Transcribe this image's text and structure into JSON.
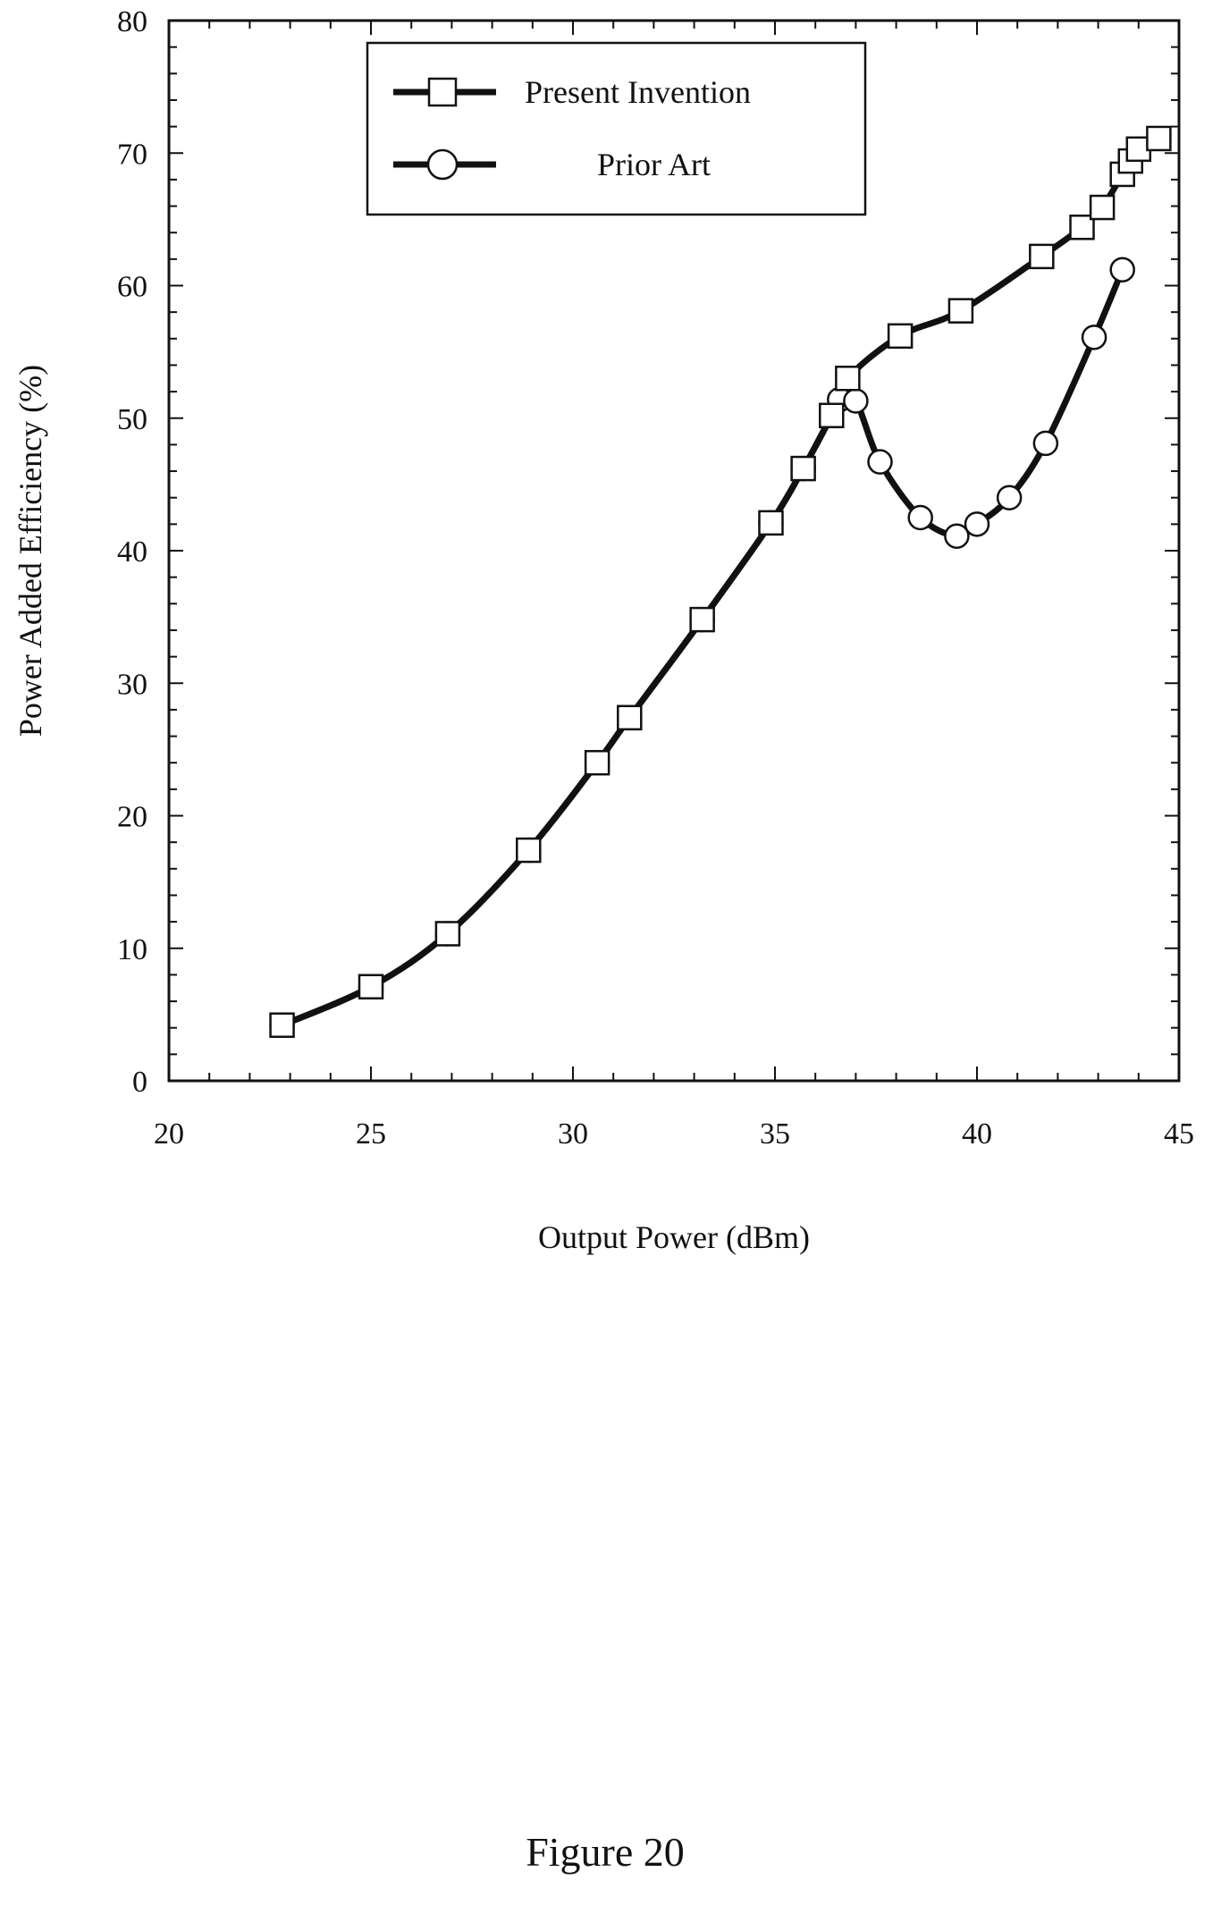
{
  "figure": {
    "caption": "Figure 20"
  },
  "chart_data": {
    "type": "line",
    "xlabel": "Output Power (dBm)",
    "ylabel": "Power Added Efficiency (%)",
    "xlim": [
      20,
      45
    ],
    "ylim": [
      0,
      80
    ],
    "xticks": [
      20,
      25,
      30,
      35,
      40,
      45
    ],
    "yticks": [
      0,
      10,
      20,
      30,
      40,
      50,
      60,
      70,
      80
    ],
    "grid": false,
    "legend_position": "top-center",
    "series": [
      {
        "name": "Present Invention",
        "marker": "square",
        "x": [
          22.8,
          25.0,
          26.9,
          28.9,
          30.6,
          31.4,
          33.2,
          34.9,
          35.7,
          36.4,
          36.8,
          38.1,
          39.6,
          41.6,
          42.6,
          43.1,
          43.6,
          43.8,
          44.0,
          44.5
        ],
        "y": [
          4.2,
          7.1,
          11.1,
          17.4,
          24.0,
          27.4,
          34.8,
          42.1,
          46.2,
          50.2,
          53.0,
          56.2,
          58.1,
          62.2,
          64.4,
          65.9,
          68.4,
          69.4,
          70.3,
          71.1
        ]
      },
      {
        "name": "Prior Art",
        "marker": "circle",
        "x": [
          22.8,
          25.0,
          26.9,
          28.9,
          30.6,
          31.4,
          33.2,
          34.9,
          35.7,
          36.4,
          36.6,
          37.0,
          37.6,
          38.6,
          39.5,
          40.0,
          40.8,
          41.7,
          42.9,
          43.6
        ],
        "y": [
          4.2,
          7.1,
          11.1,
          17.4,
          24.0,
          27.4,
          34.8,
          42.1,
          46.2,
          50.2,
          51.4,
          51.3,
          46.7,
          42.5,
          41.1,
          42.0,
          44.0,
          48.1,
          56.1,
          61.2
        ]
      }
    ]
  }
}
